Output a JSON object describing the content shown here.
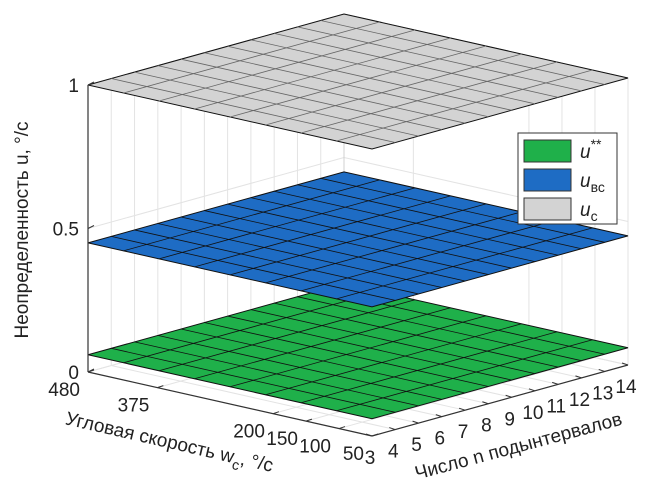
{
  "chart_data": {
    "type": "surface3d",
    "zlabel": "Неопределенность u, °/с",
    "xlabel": "Число n подынтервалов",
    "ylabel": "Угловая скорость w",
    "ylabel_sub": "c",
    "ylabel_end": ", °/с",
    "xlim": [
      3,
      14
    ],
    "xticks": [
      3,
      4,
      5,
      6,
      7,
      8,
      9,
      10,
      11,
      12,
      13,
      14
    ],
    "ylim": [
      480,
      50
    ],
    "yticks": [
      480,
      375,
      200,
      150,
      100,
      50
    ],
    "zlim": [
      0,
      1
    ],
    "zticks": [
      0,
      0.5,
      1
    ],
    "grid": true,
    "legend": "upper right",
    "series": [
      {
        "name": "u",
        "name_sup": "**",
        "color": "#1fb04a",
        "value": 0.06
      },
      {
        "name": "u",
        "name_sub": "вс",
        "color": "#1e6cc4",
        "value": 0.45
      },
      {
        "name": "u",
        "name_sub": "с",
        "color": "#d3d3d3",
        "value": 1
      }
    ]
  }
}
